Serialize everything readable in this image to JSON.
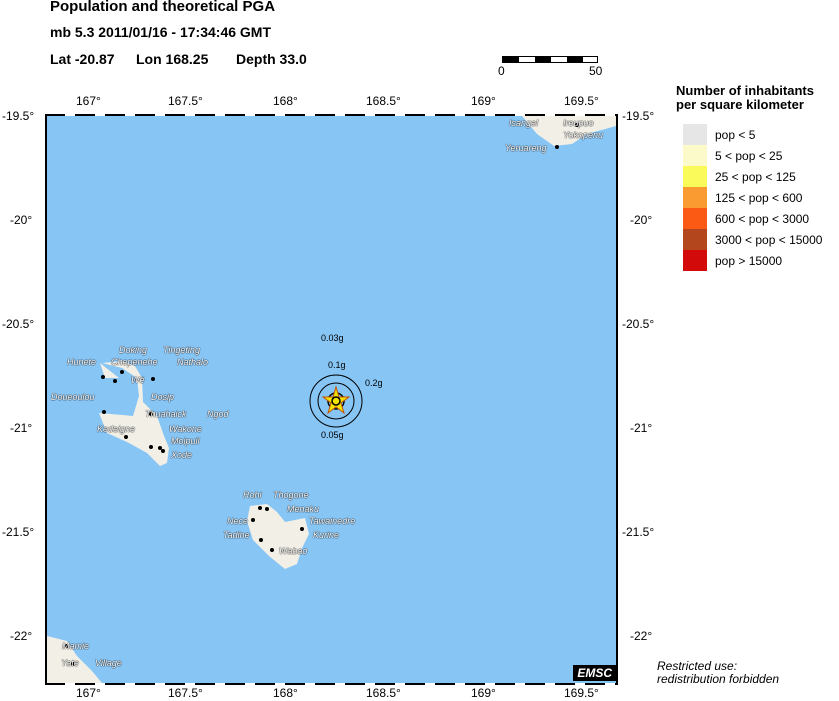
{
  "header": {
    "title": "Population and theoretical PGA",
    "event": "mb 5.3  2011/01/16 - 17:34:46 GMT",
    "lat_label": "Lat -20.87",
    "lon_label": "Lon 168.25",
    "depth_label": "Depth  33.0"
  },
  "scale_bar": {
    "start": "0",
    "end": "50"
  },
  "axes": {
    "lon_ticks": [
      "167°",
      "167.5°",
      "168°",
      "168.5°",
      "169°",
      "169.5°"
    ],
    "lat_ticks": [
      "-19.5°",
      "-20°",
      "-20.5°",
      "-21°",
      "-21.5°",
      "-22°"
    ]
  },
  "epicenter": {
    "lat": -20.87,
    "lon": 168.25
  },
  "pga_contours": [
    "0.03g",
    "0.1g",
    "0.2g",
    "0.05g"
  ],
  "towns": [
    "Doking",
    "Tingeting",
    "Hunete",
    "Chepenehe",
    "Nathalo",
    "Wé",
    "Doueoulou",
    "Dosip",
    "Thuahaick",
    "Ngod",
    "Kedeigne",
    "Wakone",
    "Moipuil",
    "Xode",
    "Rohi",
    "Thogone",
    "Menaku",
    "Nece",
    "Tawainedre",
    "Tadine",
    "Kurine",
    "Wabao",
    "Isangel",
    "Ireupuo",
    "Yokopenu",
    "Yeruareng",
    "Mamie",
    "Yate",
    "Village"
  ],
  "legend": {
    "title_line1": "Number of inhabitants",
    "title_line2": "per square kilometer",
    "items": [
      {
        "label": "pop < 5",
        "color": "#e6e6e6"
      },
      {
        "label": "5 < pop < 25",
        "color": "#fcfac8"
      },
      {
        "label": "25 < pop < 125",
        "color": "#fafa5a"
      },
      {
        "label": "125 < pop < 600",
        "color": "#fa9b32"
      },
      {
        "label": "600 < pop < 3000",
        "color": "#fa5a14"
      },
      {
        "label": "3000 < pop < 15000",
        "color": "#b4461e"
      },
      {
        "label": "pop > 15000",
        "color": "#d20a0a"
      }
    ]
  },
  "logo": "EMSC",
  "notice": {
    "line1": "Restricted use:",
    "line2": "redistribution forbidden"
  },
  "colors": {
    "sea": "#87c5f5",
    "land": "#f2efe6"
  }
}
